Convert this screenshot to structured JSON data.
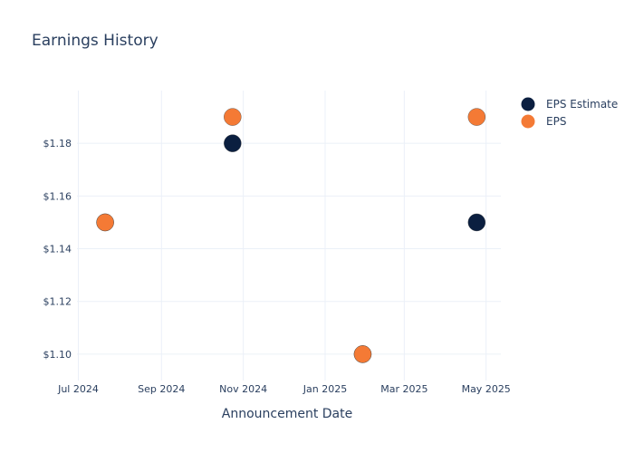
{
  "chart_data": {
    "type": "scatter",
    "title": "Earnings History",
    "xlabel": "Announcement Date",
    "ylabel": "",
    "x_ticks": [
      "Jul 2024",
      "Sep 2024",
      "Nov 2024",
      "Jan 2025",
      "Mar 2025",
      "May 2025"
    ],
    "x_tick_dates": [
      "2024-07-01",
      "2024-09-01",
      "2024-11-01",
      "2025-01-01",
      "2025-03-01",
      "2025-05-01"
    ],
    "y_ticks": [
      "$1.10",
      "$1.12",
      "$1.14",
      "$1.16",
      "$1.18"
    ],
    "y_tick_values": [
      1.1,
      1.12,
      1.14,
      1.16,
      1.18
    ],
    "xlim": [
      "2024-06-30",
      "2025-05-12"
    ],
    "ylim": [
      1.09,
      1.2
    ],
    "grid": true,
    "legend_position": "top-right",
    "series": [
      {
        "name": "EPS Estimate",
        "color": "#0b1f40",
        "points": [
          {
            "x": "2024-07-21",
            "y": 1.15
          },
          {
            "x": "2024-10-24",
            "y": 1.18
          },
          {
            "x": "2025-01-29",
            "y": 1.1
          },
          {
            "x": "2025-04-24",
            "y": 1.15
          }
        ]
      },
      {
        "name": "EPS",
        "color": "#f47a35",
        "points": [
          {
            "x": "2024-07-21",
            "y": 1.15
          },
          {
            "x": "2024-10-24",
            "y": 1.19
          },
          {
            "x": "2025-01-29",
            "y": 1.1
          },
          {
            "x": "2025-04-24",
            "y": 1.19
          }
        ]
      }
    ]
  }
}
